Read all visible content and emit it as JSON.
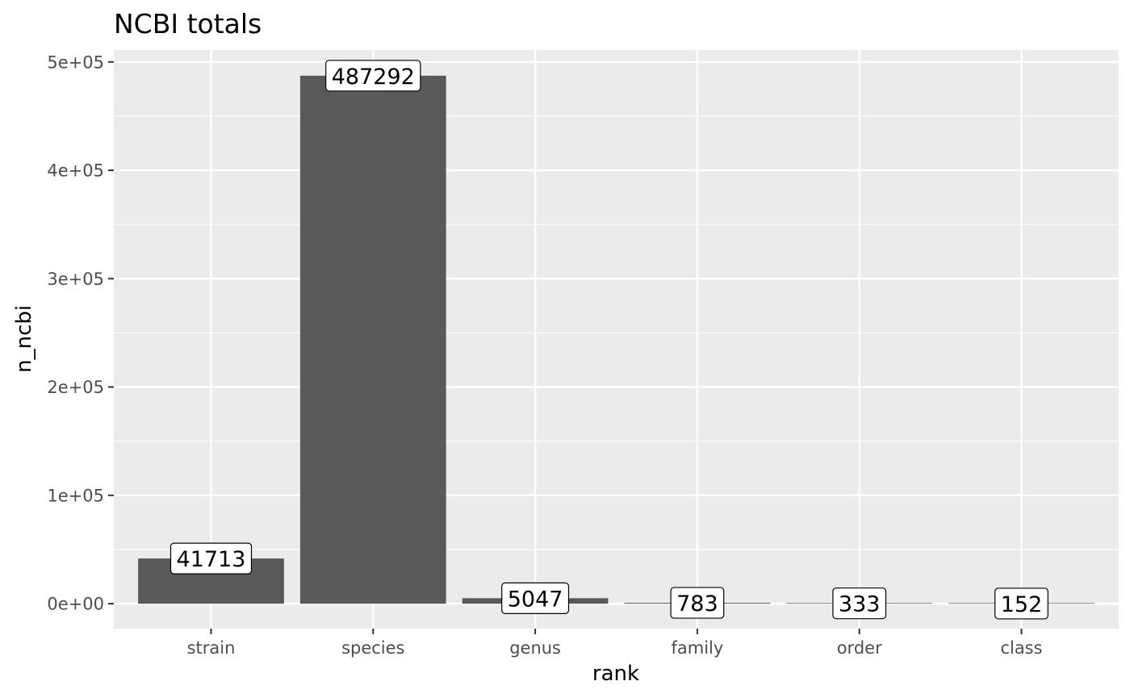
{
  "chart_data": {
    "type": "bar",
    "title": "NCBI totals",
    "xlabel": "rank",
    "ylabel": "n_ncbi",
    "categories": [
      "strain",
      "species",
      "genus",
      "family",
      "order",
      "class"
    ],
    "values": [
      41713,
      487292,
      5047,
      783,
      333,
      152
    ],
    "data_labels": [
      "41713",
      "487292",
      "5047",
      "783",
      "333",
      "152"
    ],
    "ylim": [
      -23000,
      511000
    ],
    "y_ticks": [
      0,
      100000,
      200000,
      300000,
      400000,
      500000
    ],
    "y_tick_labels": [
      "0e+00",
      "1e+05",
      "2e+05",
      "3e+05",
      "4e+05",
      "5e+05"
    ],
    "grid": true,
    "colors": {
      "bar": "#595959",
      "panel": "#ebebeb",
      "grid": "#ffffff",
      "tick_text": "#4d4d4d",
      "label_fill": "#ffffff",
      "label_border": "#000000"
    }
  }
}
